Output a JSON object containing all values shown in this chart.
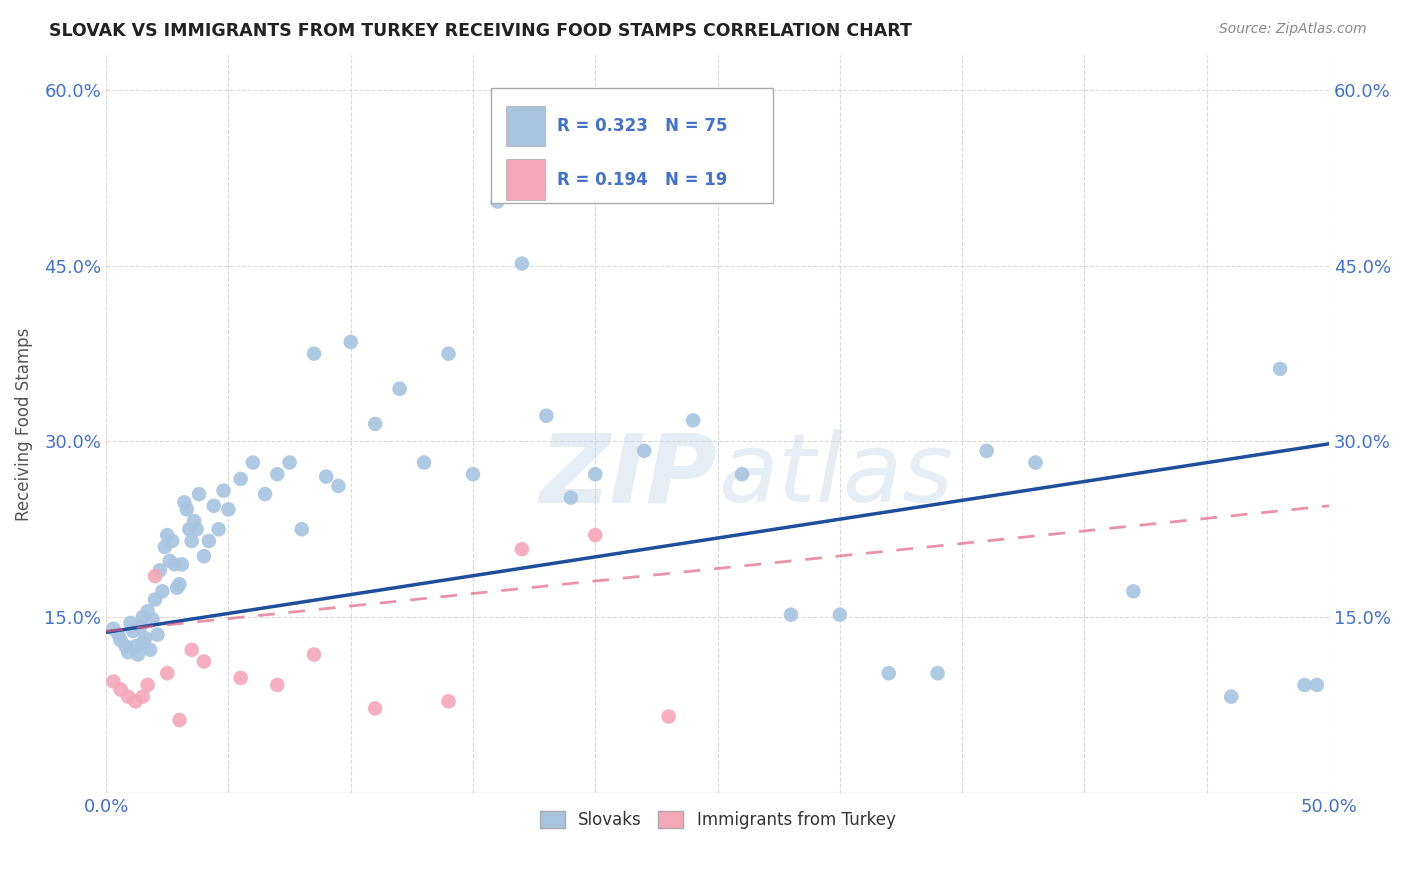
{
  "title": "SLOVAK VS IMMIGRANTS FROM TURKEY RECEIVING FOOD STAMPS CORRELATION CHART",
  "source": "Source: ZipAtlas.com",
  "ylabel": "Receiving Food Stamps",
  "xlim": [
    0.0,
    0.5
  ],
  "ylim": [
    0.0,
    0.63
  ],
  "xticks": [
    0.0,
    0.05,
    0.1,
    0.15,
    0.2,
    0.25,
    0.3,
    0.35,
    0.4,
    0.45,
    0.5
  ],
  "yticks": [
    0.0,
    0.15,
    0.3,
    0.45,
    0.6
  ],
  "ytick_labels": [
    "",
    "15.0%",
    "30.0%",
    "45.0%",
    "60.0%"
  ],
  "xtick_labels": [
    "0.0%",
    "",
    "",
    "",
    "",
    "",
    "",
    "",
    "",
    "",
    "50.0%"
  ],
  "background_color": "#ffffff",
  "grid_color": "#d0d0d0",
  "axis_color": "#4472c4",
  "blue_color": "#a8c4e0",
  "pink_color": "#f4a7b9",
  "blue_line_color": "#1f4e9c",
  "pink_line_color": "#e05a7a",
  "blue_line_y0": 0.137,
  "blue_line_y1": 0.298,
  "pink_line_y0": 0.138,
  "pink_line_y1": 0.245,
  "slovaks_x": [
    0.003,
    0.005,
    0.006,
    0.008,
    0.009,
    0.01,
    0.011,
    0.012,
    0.013,
    0.014,
    0.015,
    0.015,
    0.016,
    0.017,
    0.018,
    0.019,
    0.02,
    0.021,
    0.022,
    0.023,
    0.024,
    0.025,
    0.026,
    0.027,
    0.028,
    0.029,
    0.03,
    0.031,
    0.032,
    0.033,
    0.034,
    0.035,
    0.036,
    0.037,
    0.038,
    0.04,
    0.042,
    0.044,
    0.046,
    0.048,
    0.05,
    0.055,
    0.06,
    0.065,
    0.07,
    0.075,
    0.08,
    0.085,
    0.09,
    0.095,
    0.1,
    0.11,
    0.12,
    0.13,
    0.14,
    0.15,
    0.16,
    0.17,
    0.18,
    0.19,
    0.2,
    0.22,
    0.24,
    0.26,
    0.28,
    0.3,
    0.32,
    0.34,
    0.36,
    0.38,
    0.42,
    0.46,
    0.48,
    0.49,
    0.495
  ],
  "slovaks_y": [
    0.14,
    0.135,
    0.13,
    0.125,
    0.12,
    0.145,
    0.138,
    0.125,
    0.118,
    0.142,
    0.15,
    0.128,
    0.132,
    0.155,
    0.122,
    0.148,
    0.165,
    0.135,
    0.19,
    0.172,
    0.21,
    0.22,
    0.198,
    0.215,
    0.195,
    0.175,
    0.178,
    0.195,
    0.248,
    0.242,
    0.225,
    0.215,
    0.232,
    0.225,
    0.255,
    0.202,
    0.215,
    0.245,
    0.225,
    0.258,
    0.242,
    0.268,
    0.282,
    0.255,
    0.272,
    0.282,
    0.225,
    0.375,
    0.27,
    0.262,
    0.385,
    0.315,
    0.345,
    0.282,
    0.375,
    0.272,
    0.505,
    0.452,
    0.322,
    0.252,
    0.272,
    0.292,
    0.318,
    0.272,
    0.152,
    0.152,
    0.102,
    0.102,
    0.292,
    0.282,
    0.172,
    0.082,
    0.362,
    0.092,
    0.092
  ],
  "turkey_x": [
    0.003,
    0.006,
    0.009,
    0.012,
    0.015,
    0.017,
    0.02,
    0.025,
    0.03,
    0.035,
    0.04,
    0.055,
    0.07,
    0.085,
    0.11,
    0.14,
    0.17,
    0.2,
    0.23
  ],
  "turkey_y": [
    0.095,
    0.088,
    0.082,
    0.078,
    0.082,
    0.092,
    0.185,
    0.102,
    0.062,
    0.122,
    0.112,
    0.098,
    0.092,
    0.118,
    0.072,
    0.078,
    0.208,
    0.22,
    0.065
  ]
}
